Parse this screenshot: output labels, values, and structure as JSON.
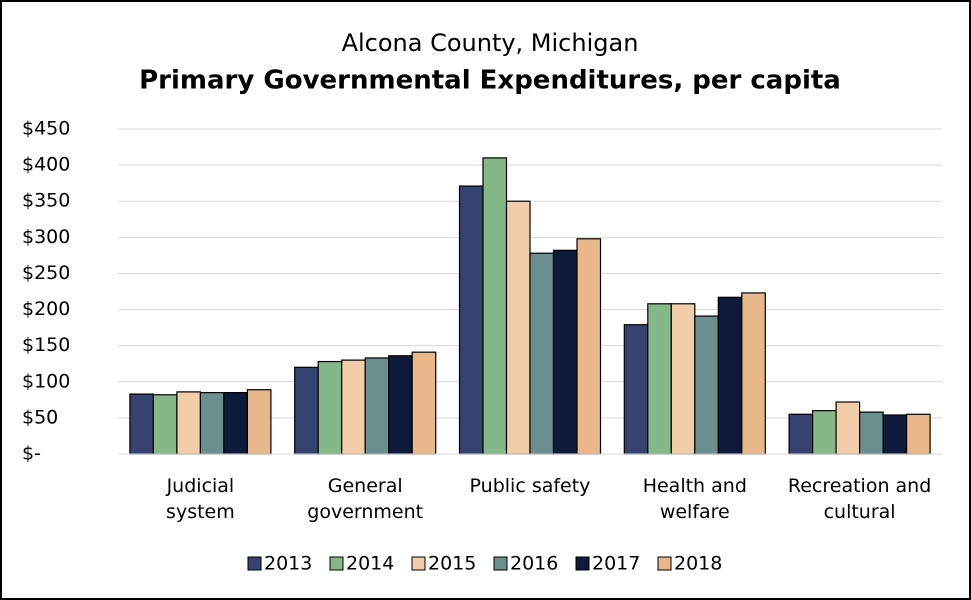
{
  "chart_data": {
    "type": "bar",
    "title": "Alcona County, Michigan",
    "subtitle": "Primary Governmental Expenditures, per capita",
    "categories": [
      "Judicial\nsystem",
      "General\ngovernment",
      "Public safety",
      "Health and\nwelfare",
      "Recreation and\ncultural"
    ],
    "series": [
      {
        "name": "2013",
        "color": "#364370",
        "values": [
          83,
          120,
          371,
          179,
          55
        ]
      },
      {
        "name": "2014",
        "color": "#84b888",
        "values": [
          82,
          128,
          410,
          208,
          60
        ]
      },
      {
        "name": "2015",
        "color": "#f2cda9",
        "values": [
          86,
          130,
          350,
          208,
          72
        ]
      },
      {
        "name": "2016",
        "color": "#6b8e8e",
        "values": [
          85,
          133,
          278,
          191,
          58
        ]
      },
      {
        "name": "2017",
        "color": "#0d1a3a",
        "values": [
          85,
          136,
          282,
          217,
          54
        ]
      },
      {
        "name": "2018",
        "color": "#e9b88a",
        "values": [
          89,
          141,
          298,
          223,
          55
        ]
      }
    ],
    "ylim": [
      0,
      450
    ],
    "yticks": [
      {
        "value": 0,
        "label": "$-"
      },
      {
        "value": 50,
        "label": "$50"
      },
      {
        "value": 100,
        "label": "$100"
      },
      {
        "value": 150,
        "label": "$150"
      },
      {
        "value": 200,
        "label": "$200"
      },
      {
        "value": 250,
        "label": "$250"
      },
      {
        "value": 300,
        "label": "$300"
      },
      {
        "value": 350,
        "label": "$350"
      },
      {
        "value": 400,
        "label": "$400"
      },
      {
        "value": 450,
        "label": "$450"
      }
    ],
    "grid": true,
    "legend": "bottom"
  }
}
